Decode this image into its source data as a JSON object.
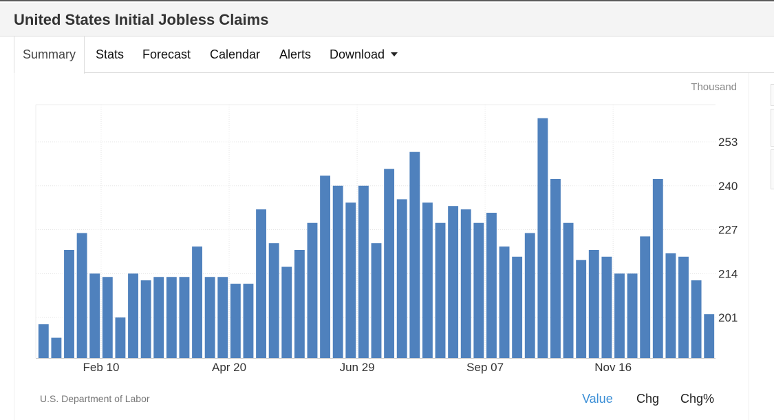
{
  "header": {
    "title": "United States Initial Jobless Claims"
  },
  "tabs": [
    {
      "label": "Summary"
    },
    {
      "label": "Stats"
    },
    {
      "label": "Forecast"
    },
    {
      "label": "Calendar"
    },
    {
      "label": "Alerts"
    },
    {
      "label": "Download"
    }
  ],
  "unit_label": "Thousand",
  "source": "U.S. Department of Labor",
  "view_modes": [
    {
      "label": "Value"
    },
    {
      "label": "Chg"
    },
    {
      "label": "Chg%"
    }
  ],
  "colors": {
    "bar": "#4f81bd",
    "active_mode": "#3a8ed6",
    "grid": "#e6e6e6"
  },
  "chart_data": {
    "type": "bar",
    "title": "United States Initial Jobless Claims",
    "ylabel": "Thousand",
    "ylim": [
      189,
      264
    ],
    "y_ticks": [
      201,
      214,
      227,
      240,
      253
    ],
    "y_axis_position": "right",
    "x_tick_labels": [
      "Feb 10",
      "Apr 20",
      "Jun 29",
      "Sep 07",
      "Nov 16"
    ],
    "x_tick_bar_index": [
      5,
      15,
      25,
      35,
      45
    ],
    "grid": true,
    "legend": "none",
    "values": [
      199,
      195,
      221,
      226,
      214,
      213,
      201,
      214,
      212,
      213,
      213,
      213,
      222,
      213,
      213,
      211,
      211,
      233,
      223,
      216,
      221,
      229,
      243,
      240,
      235,
      240,
      223,
      245,
      236,
      250,
      235,
      229,
      234,
      233,
      229,
      232,
      222,
      219,
      226,
      260,
      242,
      229,
      218,
      221,
      219,
      214,
      214,
      225,
      242,
      220,
      219,
      212,
      202
    ]
  }
}
